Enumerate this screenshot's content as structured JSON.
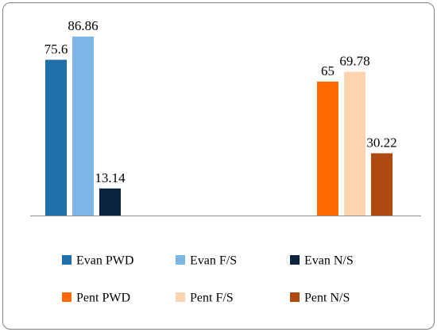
{
  "chart_data": {
    "type": "bar",
    "title": "",
    "xlabel": "",
    "ylabel": "",
    "ylim": [
      0,
      100
    ],
    "grid": false,
    "legend_position": "bottom",
    "groups": [
      {
        "bars": [
          {
            "name": "Evan PWD",
            "value": 75.6,
            "label": "75.6",
            "color": "#1f6fa8"
          },
          {
            "name": "Evan F/S",
            "value": 86.86,
            "label": "86.86",
            "color": "#7db5e6"
          },
          {
            "name": "Evan N/S",
            "value": 13.14,
            "label": "13.14",
            "color": "#0c2340"
          }
        ]
      },
      {
        "bars": [
          {
            "name": "Pent PWD",
            "value": 65,
            "label": "65",
            "color": "#ff6a00"
          },
          {
            "name": "Pent F/S",
            "value": 69.78,
            "label": "69.78",
            "color": "#fdd3b0"
          },
          {
            "name": "Pent N/S",
            "value": 30.22,
            "label": "30.22",
            "color": "#b0490f"
          }
        ]
      }
    ],
    "legend": [
      {
        "name": "Evan PWD",
        "color": "#1f6fa8"
      },
      {
        "name": "Evan F/S",
        "color": "#7db5e6"
      },
      {
        "name": "Evan N/S",
        "color": "#0c2340"
      },
      {
        "name": "Pent PWD",
        "color": "#ff6a00"
      },
      {
        "name": "Pent F/S",
        "color": "#fdd3b0"
      },
      {
        "name": "Pent N/S",
        "color": "#b0490f"
      }
    ]
  }
}
